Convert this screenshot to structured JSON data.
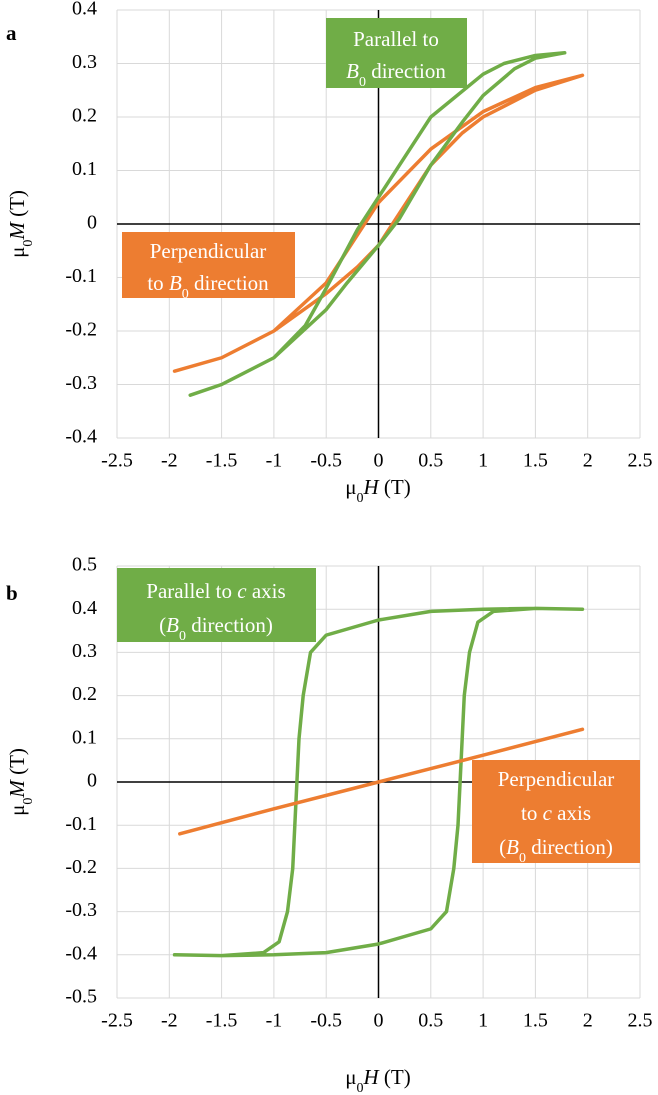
{
  "chart_data": [
    {
      "type": "line",
      "panel": "a",
      "x_label": [
        "μ",
        "0",
        "H",
        " (T)"
      ],
      "y_label": [
        "μ",
        "0",
        "M",
        " (T)"
      ],
      "xlim": [
        -2.5,
        2.5
      ],
      "xticks": [
        -2.5,
        -2,
        -1.5,
        -1,
        -0.5,
        0,
        0.5,
        1,
        1.5,
        2,
        2.5
      ],
      "ylim": [
        -0.4,
        0.4
      ],
      "yticks": [
        -0.4,
        -0.3,
        -0.2,
        -0.1,
        0,
        0.1,
        0.2,
        0.3,
        0.4
      ],
      "grid": true,
      "series": [
        {
          "color": "#ed7d31",
          "x": [
            -1.95,
            -1.5,
            -1.0,
            -0.5,
            -0.2,
            0,
            0.2,
            0.5,
            0.8,
            1.0,
            1.5,
            1.95,
            1.5,
            1.0,
            0.5,
            0.2,
            0,
            -0.2,
            -0.5,
            -1.0,
            -1.5,
            -1.95
          ],
          "values": [
            -0.275,
            -0.25,
            -0.2,
            -0.13,
            -0.08,
            -0.04,
            0.02,
            0.11,
            0.17,
            0.2,
            0.25,
            0.278,
            0.255,
            0.21,
            0.14,
            0.08,
            0.04,
            -0.02,
            -0.11,
            -0.2,
            -0.25,
            -0.275
          ]
        },
        {
          "color": "#70ad47",
          "x": [
            -1.8,
            -1.5,
            -1.0,
            -0.5,
            -0.3,
            0,
            0.2,
            0.5,
            0.8,
            1.0,
            1.3,
            1.5,
            1.78,
            1.5,
            1.2,
            1.0,
            0.5,
            0.2,
            0,
            -0.2,
            -0.5,
            -0.7,
            -1.0,
            -1.5,
            -1.8
          ],
          "values": [
            -0.32,
            -0.3,
            -0.25,
            -0.16,
            -0.11,
            -0.04,
            0.01,
            0.11,
            0.19,
            0.24,
            0.29,
            0.31,
            0.32,
            0.315,
            0.3,
            0.28,
            0.2,
            0.11,
            0.05,
            -0.01,
            -0.12,
            -0.19,
            -0.25,
            -0.3,
            -0.32
          ]
        }
      ],
      "annotations": [
        {
          "color": "#70ad47",
          "lines": [
            [
              "Parallel to"
            ],
            [
              "B",
              "0",
              " direction"
            ]
          ]
        },
        {
          "color": "#ed7d31",
          "lines": [
            [
              "Perpendicular"
            ],
            [
              "to ",
              "B",
              "0",
              " direction"
            ]
          ]
        }
      ]
    },
    {
      "type": "line",
      "panel": "b",
      "x_label": [
        "μ",
        "0",
        "H",
        " (T)"
      ],
      "y_label": [
        "μ",
        "0",
        "M",
        " (T)"
      ],
      "xlim": [
        -2.5,
        2.5
      ],
      "xticks": [
        -2.5,
        -2,
        -1.5,
        -1,
        -0.5,
        0,
        0.5,
        1,
        1.5,
        2,
        2.5
      ],
      "ylim": [
        -0.5,
        0.5
      ],
      "yticks": [
        -0.5,
        -0.4,
        -0.3,
        -0.2,
        -0.1,
        0,
        0.1,
        0.2,
        0.3,
        0.4,
        0.5
      ],
      "grid": true,
      "series": [
        {
          "color": "#70ad47",
          "x": [
            -1.95,
            -1.5,
            -1.0,
            -0.5,
            0,
            0.5,
            0.65,
            0.72,
            0.76,
            0.78,
            0.8,
            0.82,
            0.87,
            0.95,
            1.1,
            1.5,
            1.95,
            1.5,
            1.0,
            0.5,
            0,
            -0.5,
            -0.65,
            -0.72,
            -0.76,
            -0.78,
            -0.8,
            -0.82,
            -0.87,
            -0.95,
            -1.1,
            -1.5,
            -1.95
          ],
          "values": [
            -0.4,
            -0.402,
            -0.4,
            -0.395,
            -0.375,
            -0.34,
            -0.3,
            -0.2,
            -0.1,
            0,
            0.1,
            0.2,
            0.3,
            0.37,
            0.395,
            0.402,
            0.4,
            0.402,
            0.4,
            0.395,
            0.375,
            0.34,
            0.3,
            0.2,
            0.1,
            0,
            -0.1,
            -0.2,
            -0.3,
            -0.37,
            -0.395,
            -0.402,
            -0.4
          ]
        },
        {
          "color": "#ed7d31",
          "x": [
            -1.9,
            -1.0,
            0,
            1.0,
            1.95
          ],
          "values": [
            -0.12,
            -0.062,
            0,
            0.062,
            0.122
          ]
        }
      ],
      "annotations": [
        {
          "color": "#70ad47",
          "lines": [
            [
              "Parallel to ",
              "c",
              " axis"
            ],
            [
              "(",
              "B",
              "0",
              " direction)"
            ]
          ]
        },
        {
          "color": "#ed7d31",
          "lines": [
            [
              "Perpendicular"
            ],
            [
              "to ",
              "c",
              " axis"
            ],
            [
              "(",
              "B",
              "0",
              " direction)"
            ]
          ]
        }
      ]
    }
  ]
}
